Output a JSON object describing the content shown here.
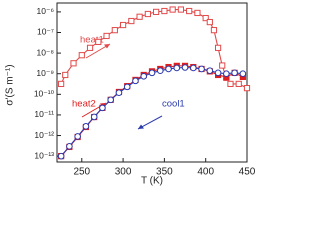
{
  "chart_data": {
    "type": "line",
    "y_label": "σ'(S m⁻¹)",
    "x_label": "T (K)",
    "yscale": "log",
    "xlim": [
      220,
      450
    ],
    "ylim": [
      5.2e-14,
      2.7e-06
    ],
    "xticks": [
      250,
      300,
      350,
      400,
      450
    ],
    "yticks": [
      {
        "value": 1e-13,
        "label": "10⁻¹³"
      },
      {
        "value": 1e-12,
        "label": "10⁻¹²"
      },
      {
        "value": 1e-11,
        "label": "10⁻¹¹"
      },
      {
        "value": 1e-10,
        "label": "10⁻¹⁰"
      },
      {
        "value": 1e-09,
        "label": "10⁻⁹"
      },
      {
        "value": 1e-08,
        "label": "10⁻⁸"
      },
      {
        "value": 1e-07,
        "label": "10⁻⁷"
      },
      {
        "value": 1e-06,
        "label": "10⁻⁶"
      }
    ],
    "series": [
      {
        "name": "heat1",
        "color": "#e24a4a",
        "marker": "square-open",
        "x": [
          225,
          230,
          240,
          250,
          260,
          270,
          280,
          290,
          300,
          310,
          320,
          330,
          340,
          350,
          360,
          370,
          380,
          390,
          400,
          405,
          410,
          415,
          420,
          425,
          430,
          440,
          450
        ],
        "values": [
          3.2e-10,
          8.7e-10,
          3.2e-09,
          7.9e-09,
          1.8e-08,
          3.5e-08,
          6.8e-08,
          1.3e-07,
          2.3e-07,
          3.6e-07,
          5.8e-07,
          7.9e-07,
          1e-06,
          1.1e-06,
          1.3e-06,
          1.3e-06,
          1.1e-06,
          8.9e-07,
          5e-07,
          3.2e-07,
          1.3e-07,
          1.8e-08,
          2.5e-09,
          6.3e-10,
          3.2e-10,
          3.2e-10,
          2e-10
        ]
      },
      {
        "name": "heat2",
        "color": "#e01e1e",
        "marker": "square-filled",
        "x": [
          225,
          235,
          245,
          255,
          265,
          275,
          285,
          295,
          305,
          315,
          325,
          335,
          345,
          355,
          365,
          375,
          385,
          395,
          405,
          415,
          425,
          435,
          445
        ],
        "values": [
          1e-13,
          2.8e-13,
          8.5e-13,
          2.6e-12,
          7.9e-12,
          2.2e-11,
          5.4e-11,
          1.3e-10,
          2.5e-10,
          5e-10,
          8.7e-10,
          1.3e-09,
          1.7e-09,
          2.1e-09,
          2.4e-09,
          2.4e-09,
          2.1e-09,
          1.7e-09,
          1.3e-09,
          8.7e-10,
          6.9e-10,
          1.1e-09,
          7e-10
        ]
      },
      {
        "name": "cool1",
        "color": "#2b3cae",
        "marker": "circle-open",
        "x": [
          225,
          235,
          245,
          255,
          265,
          275,
          285,
          295,
          305,
          315,
          325,
          335,
          345,
          355,
          365,
          375,
          385,
          395,
          405,
          415,
          425,
          435,
          445
        ],
        "values": [
          1e-13,
          3e-13,
          9e-13,
          2.8e-12,
          8e-12,
          2.2e-11,
          5.4e-11,
          1.2e-10,
          2.3e-10,
          4.5e-10,
          7.5e-10,
          1.1e-09,
          1.4e-09,
          1.7e-09,
          1.9e-09,
          2e-09,
          1.9e-09,
          1.7e-09,
          1.4e-09,
          1.1e-09,
          1e-09,
          1.1e-09,
          1e-09
        ]
      }
    ]
  }
}
